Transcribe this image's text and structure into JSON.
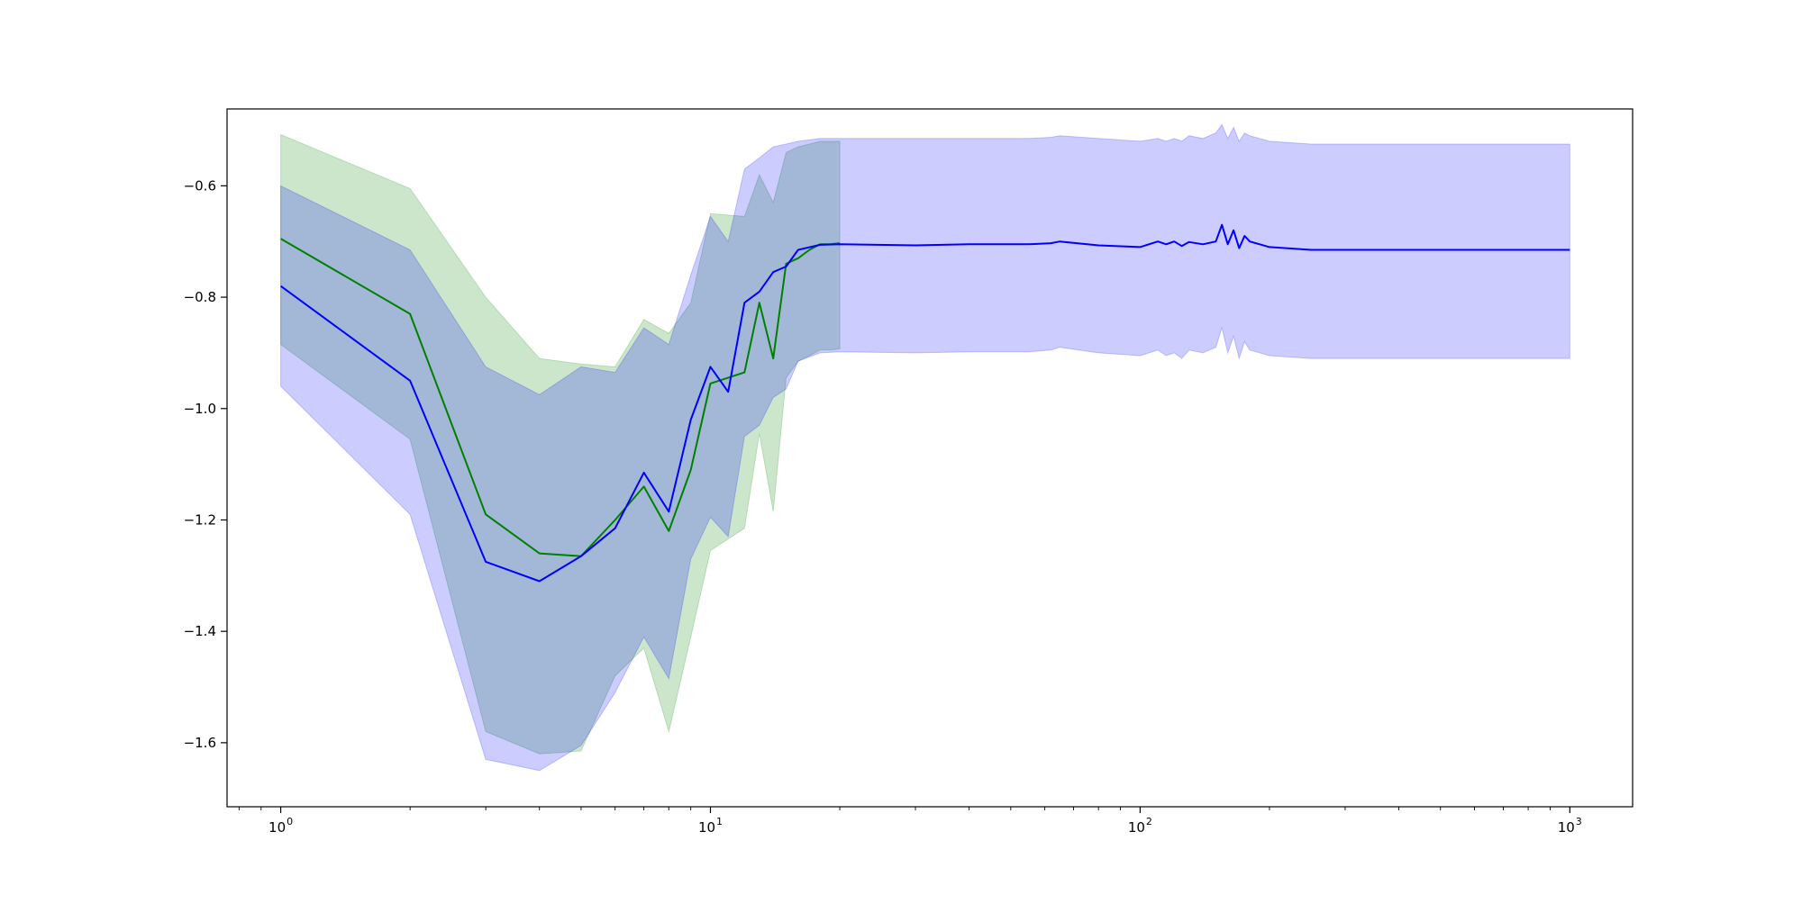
{
  "chart_data": {
    "type": "line",
    "title": "",
    "xlabel": "",
    "ylabel": "",
    "xscale": "log",
    "xlim": [
      0.75,
      1400
    ],
    "ylim": [
      -1.715,
      -0.462
    ],
    "grid": false,
    "legend": "none",
    "x_ticks": [
      {
        "value": 1,
        "label": "10",
        "exp": "0"
      },
      {
        "value": 10,
        "label": "10",
        "exp": "1"
      },
      {
        "value": 100,
        "label": "10",
        "exp": "2"
      },
      {
        "value": 1000,
        "label": "10",
        "exp": "3"
      }
    ],
    "y_ticks": [
      {
        "value": -0.6,
        "label": "−0.6"
      },
      {
        "value": -0.8,
        "label": "−0.8"
      },
      {
        "value": -1.0,
        "label": "−1.0"
      },
      {
        "value": -1.2,
        "label": "−1.2"
      },
      {
        "value": -1.4,
        "label": "−1.4"
      },
      {
        "value": -1.6,
        "label": "−1.6"
      }
    ],
    "series": [
      {
        "color": "#008000",
        "band_color": "#008000",
        "band_opacity": 0.2,
        "x": [
          1,
          2,
          3,
          4,
          5,
          6,
          7,
          8,
          9,
          10,
          12,
          13,
          14,
          15,
          16,
          17,
          18,
          19,
          20
        ],
        "y": [
          -0.695,
          -0.83,
          -1.19,
          -1.26,
          -1.265,
          -1.2,
          -1.14,
          -1.22,
          -1.11,
          -0.955,
          -0.935,
          -0.81,
          -0.91,
          -0.74,
          -0.73,
          -0.715,
          -0.705,
          -0.705,
          -0.703
        ],
        "upper": [
          -0.508,
          -0.605,
          -0.8,
          -0.91,
          -0.92,
          -0.925,
          -0.84,
          -0.865,
          -0.81,
          -0.65,
          -0.655,
          -0.58,
          -0.63,
          -0.54,
          -0.53,
          -0.525,
          -0.52,
          -0.52,
          -0.52
        ],
        "lower": [
          -0.885,
          -1.055,
          -1.58,
          -1.62,
          -1.615,
          -1.48,
          -1.43,
          -1.58,
          -1.41,
          -1.255,
          -1.215,
          -1.045,
          -1.185,
          -0.945,
          -0.915,
          -0.905,
          -0.895,
          -0.895,
          -0.893
        ]
      },
      {
        "color": "#0000ff",
        "band_color": "#0000ff",
        "band_opacity": 0.2,
        "x": [
          1,
          2,
          3,
          4,
          5,
          6,
          7,
          8,
          9,
          10,
          11,
          12,
          13,
          14,
          15,
          16,
          18,
          20,
          30,
          40,
          55,
          62,
          65,
          80,
          100,
          110,
          115,
          120,
          125,
          130,
          140,
          150,
          155,
          160,
          165,
          170,
          175,
          180,
          200,
          250,
          300,
          1000
        ],
        "y": [
          -0.78,
          -0.95,
          -1.275,
          -1.31,
          -1.265,
          -1.215,
          -1.115,
          -1.185,
          -1.02,
          -0.925,
          -0.97,
          -0.81,
          -0.79,
          -0.755,
          -0.745,
          -0.715,
          -0.706,
          -0.705,
          -0.707,
          -0.705,
          -0.705,
          -0.703,
          -0.7,
          -0.707,
          -0.71,
          -0.7,
          -0.705,
          -0.7,
          -0.708,
          -0.701,
          -0.705,
          -0.7,
          -0.67,
          -0.705,
          -0.68,
          -0.712,
          -0.69,
          -0.7,
          -0.71,
          -0.715,
          -0.715,
          -0.715
        ],
        "upper": [
          -0.6,
          -0.715,
          -0.925,
          -0.975,
          -0.925,
          -0.935,
          -0.855,
          -0.885,
          -0.76,
          -0.655,
          -0.7,
          -0.57,
          -0.55,
          -0.53,
          -0.525,
          -0.52,
          -0.515,
          -0.515,
          -0.515,
          -0.515,
          -0.515,
          -0.513,
          -0.51,
          -0.515,
          -0.52,
          -0.515,
          -0.52,
          -0.515,
          -0.52,
          -0.51,
          -0.515,
          -0.505,
          -0.49,
          -0.515,
          -0.495,
          -0.52,
          -0.505,
          -0.51,
          -0.52,
          -0.525,
          -0.525,
          -0.525
        ],
        "lower": [
          -0.96,
          -1.19,
          -1.63,
          -1.65,
          -1.605,
          -1.51,
          -1.41,
          -1.485,
          -1.27,
          -1.195,
          -1.23,
          -1.05,
          -1.03,
          -0.98,
          -0.965,
          -0.915,
          -0.9,
          -0.898,
          -0.9,
          -0.898,
          -0.898,
          -0.895,
          -0.89,
          -0.9,
          -0.905,
          -0.895,
          -0.905,
          -0.9,
          -0.91,
          -0.895,
          -0.9,
          -0.89,
          -0.855,
          -0.9,
          -0.87,
          -0.91,
          -0.88,
          -0.895,
          -0.905,
          -0.91,
          -0.91,
          -0.91
        ]
      }
    ]
  }
}
